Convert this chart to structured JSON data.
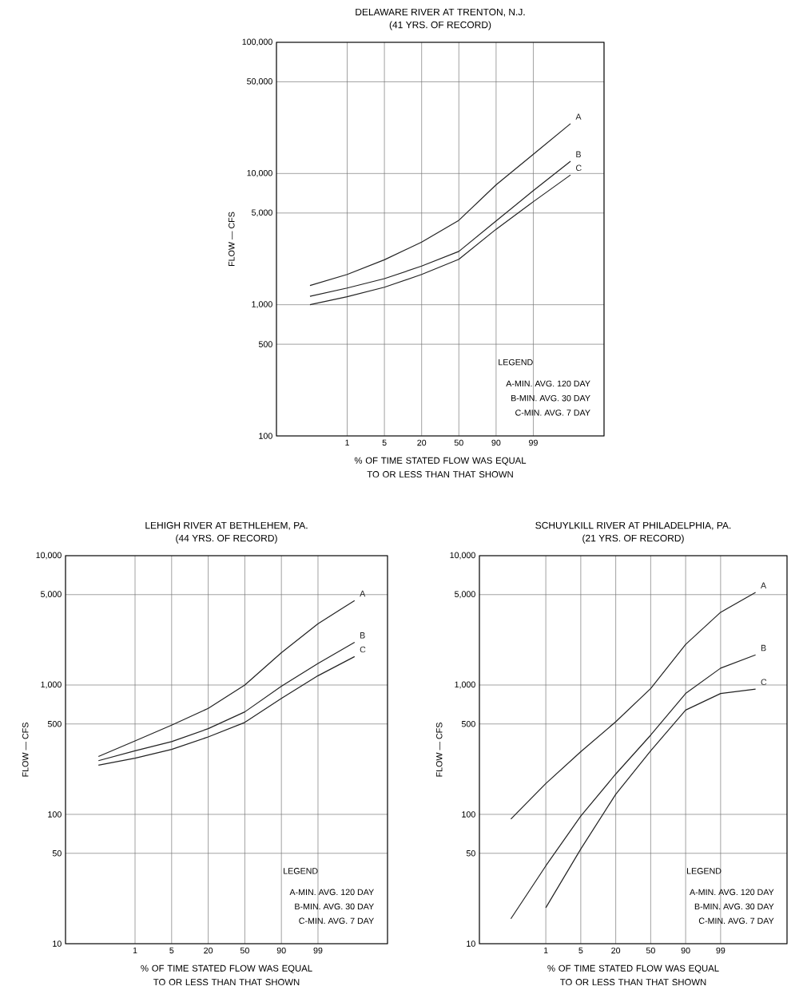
{
  "chart_data": [
    {
      "type": "line",
      "title": "DELAWARE RIVER AT TRENTON, N.J.",
      "subtitle": "(41 YRS. OF RECORD)",
      "xlabel": "% OF TIME STATED FLOW WAS EQUAL TO OR LESS THAN THAT SHOWN",
      "ylabel": "FLOW — CFS",
      "log": "y",
      "grid": true,
      "categories": [
        null,
        "1",
        "5",
        "20",
        "50",
        "90",
        "99",
        null
      ],
      "ylim": [
        100,
        100000
      ],
      "yticks": [
        100,
        500,
        {
          "value": 1000,
          "label": "1,000"
        },
        {
          "value": 5000,
          "label": "5,000"
        },
        {
          "value": 10000,
          "label": "10,000"
        },
        {
          "value": 50000,
          "label": "50,000"
        },
        {
          "value": 100000,
          "label": "100,000"
        }
      ],
      "series": [
        {
          "name": "A",
          "color": "#222222",
          "values": [
            1400,
            1700,
            2200,
            3000,
            4400,
            8200,
            14000,
            24000
          ]
        },
        {
          "name": "B",
          "color": "#222222",
          "values": [
            1160,
            1340,
            1580,
            1970,
            2550,
            4350,
            7400,
            12400
          ]
        },
        {
          "name": "C",
          "color": "#222222",
          "values": [
            1000,
            1150,
            1360,
            1700,
            2220,
            3760,
            6100,
            9750
          ]
        }
      ],
      "annotations": [
        "LEGEND",
        "A-MIN. AVG. 120 DAY",
        "B-MIN. AVG. 30 DAY",
        "C-MIN. AVG. 7 DAY"
      ]
    },
    {
      "type": "line",
      "title": "LEHIGH RIVER AT BETHLEHEM, PA.",
      "subtitle": "(44 YRS. OF RECORD)",
      "xlabel": "% OF TIME STATED FLOW WAS EQUAL TO OR LESS THAN THAT SHOWN",
      "ylabel": "FLOW — CFS",
      "log": "y",
      "grid": true,
      "categories": [
        null,
        "1",
        "5",
        "20",
        "50",
        "90",
        "99",
        null
      ],
      "ylim": [
        10,
        10000
      ],
      "yticks": [
        10,
        50,
        100,
        500,
        {
          "value": 1000,
          "label": "1,000"
        },
        {
          "value": 5000,
          "label": "5,000"
        },
        {
          "value": 10000,
          "label": "10,000"
        }
      ],
      "series": [
        {
          "name": "A",
          "color": "#222222",
          "values": [
            280,
            370,
            490,
            660,
            1000,
            1780,
            2980,
            4500
          ]
        },
        {
          "name": "B",
          "color": "#222222",
          "values": [
            260,
            310,
            365,
            460,
            620,
            980,
            1470,
            2140
          ]
        },
        {
          "name": "C",
          "color": "#222222",
          "values": [
            240,
            272,
            318,
            397,
            514,
            787,
            1180,
            1660
          ]
        }
      ],
      "annotations": [
        "LEGEND",
        "A-MIN. AVG. 120 DAY",
        "B-MIN. AVG. 30 DAY",
        "C-MIN. AVG. 7 DAY"
      ]
    },
    {
      "type": "line",
      "title": "SCHUYLKILL RIVER AT PHILADELPHIA, PA.",
      "subtitle": "(21 YRS. OF RECORD)",
      "xlabel": "% OF TIME STATED FLOW WAS EQUAL TO OR LESS THAN THAT SHOWN",
      "ylabel": "FLOW — CFS",
      "log": "y",
      "grid": true,
      "categories": [
        null,
        "1",
        "5",
        "20",
        "50",
        "90",
        "99",
        null
      ],
      "ylim": [
        10,
        10000
      ],
      "yticks": [
        10,
        50,
        100,
        500,
        {
          "value": 1000,
          "label": "1,000"
        },
        {
          "value": 5000,
          "label": "5,000"
        },
        {
          "value": 10000,
          "label": "10,000"
        }
      ],
      "series": [
        {
          "name": "A",
          "color": "#222222",
          "values": [
            92,
            173,
            305,
            520,
            940,
            2060,
            3650,
            5200
          ]
        },
        {
          "name": "B",
          "color": "#222222",
          "values": [
            15.6,
            40,
            97,
            205,
            410,
            860,
            1350,
            1710
          ]
        },
        {
          "name": "C",
          "color": "#222222",
          "values": [
            null,
            19,
            54,
            143,
            310,
            640,
            860,
            930
          ]
        }
      ],
      "annotations": [
        "LEGEND",
        "A-MIN. AVG. 120 DAY",
        "B-MIN. AVG. 30 DAY",
        "C-MIN. AVG. 7 DAY"
      ]
    }
  ]
}
